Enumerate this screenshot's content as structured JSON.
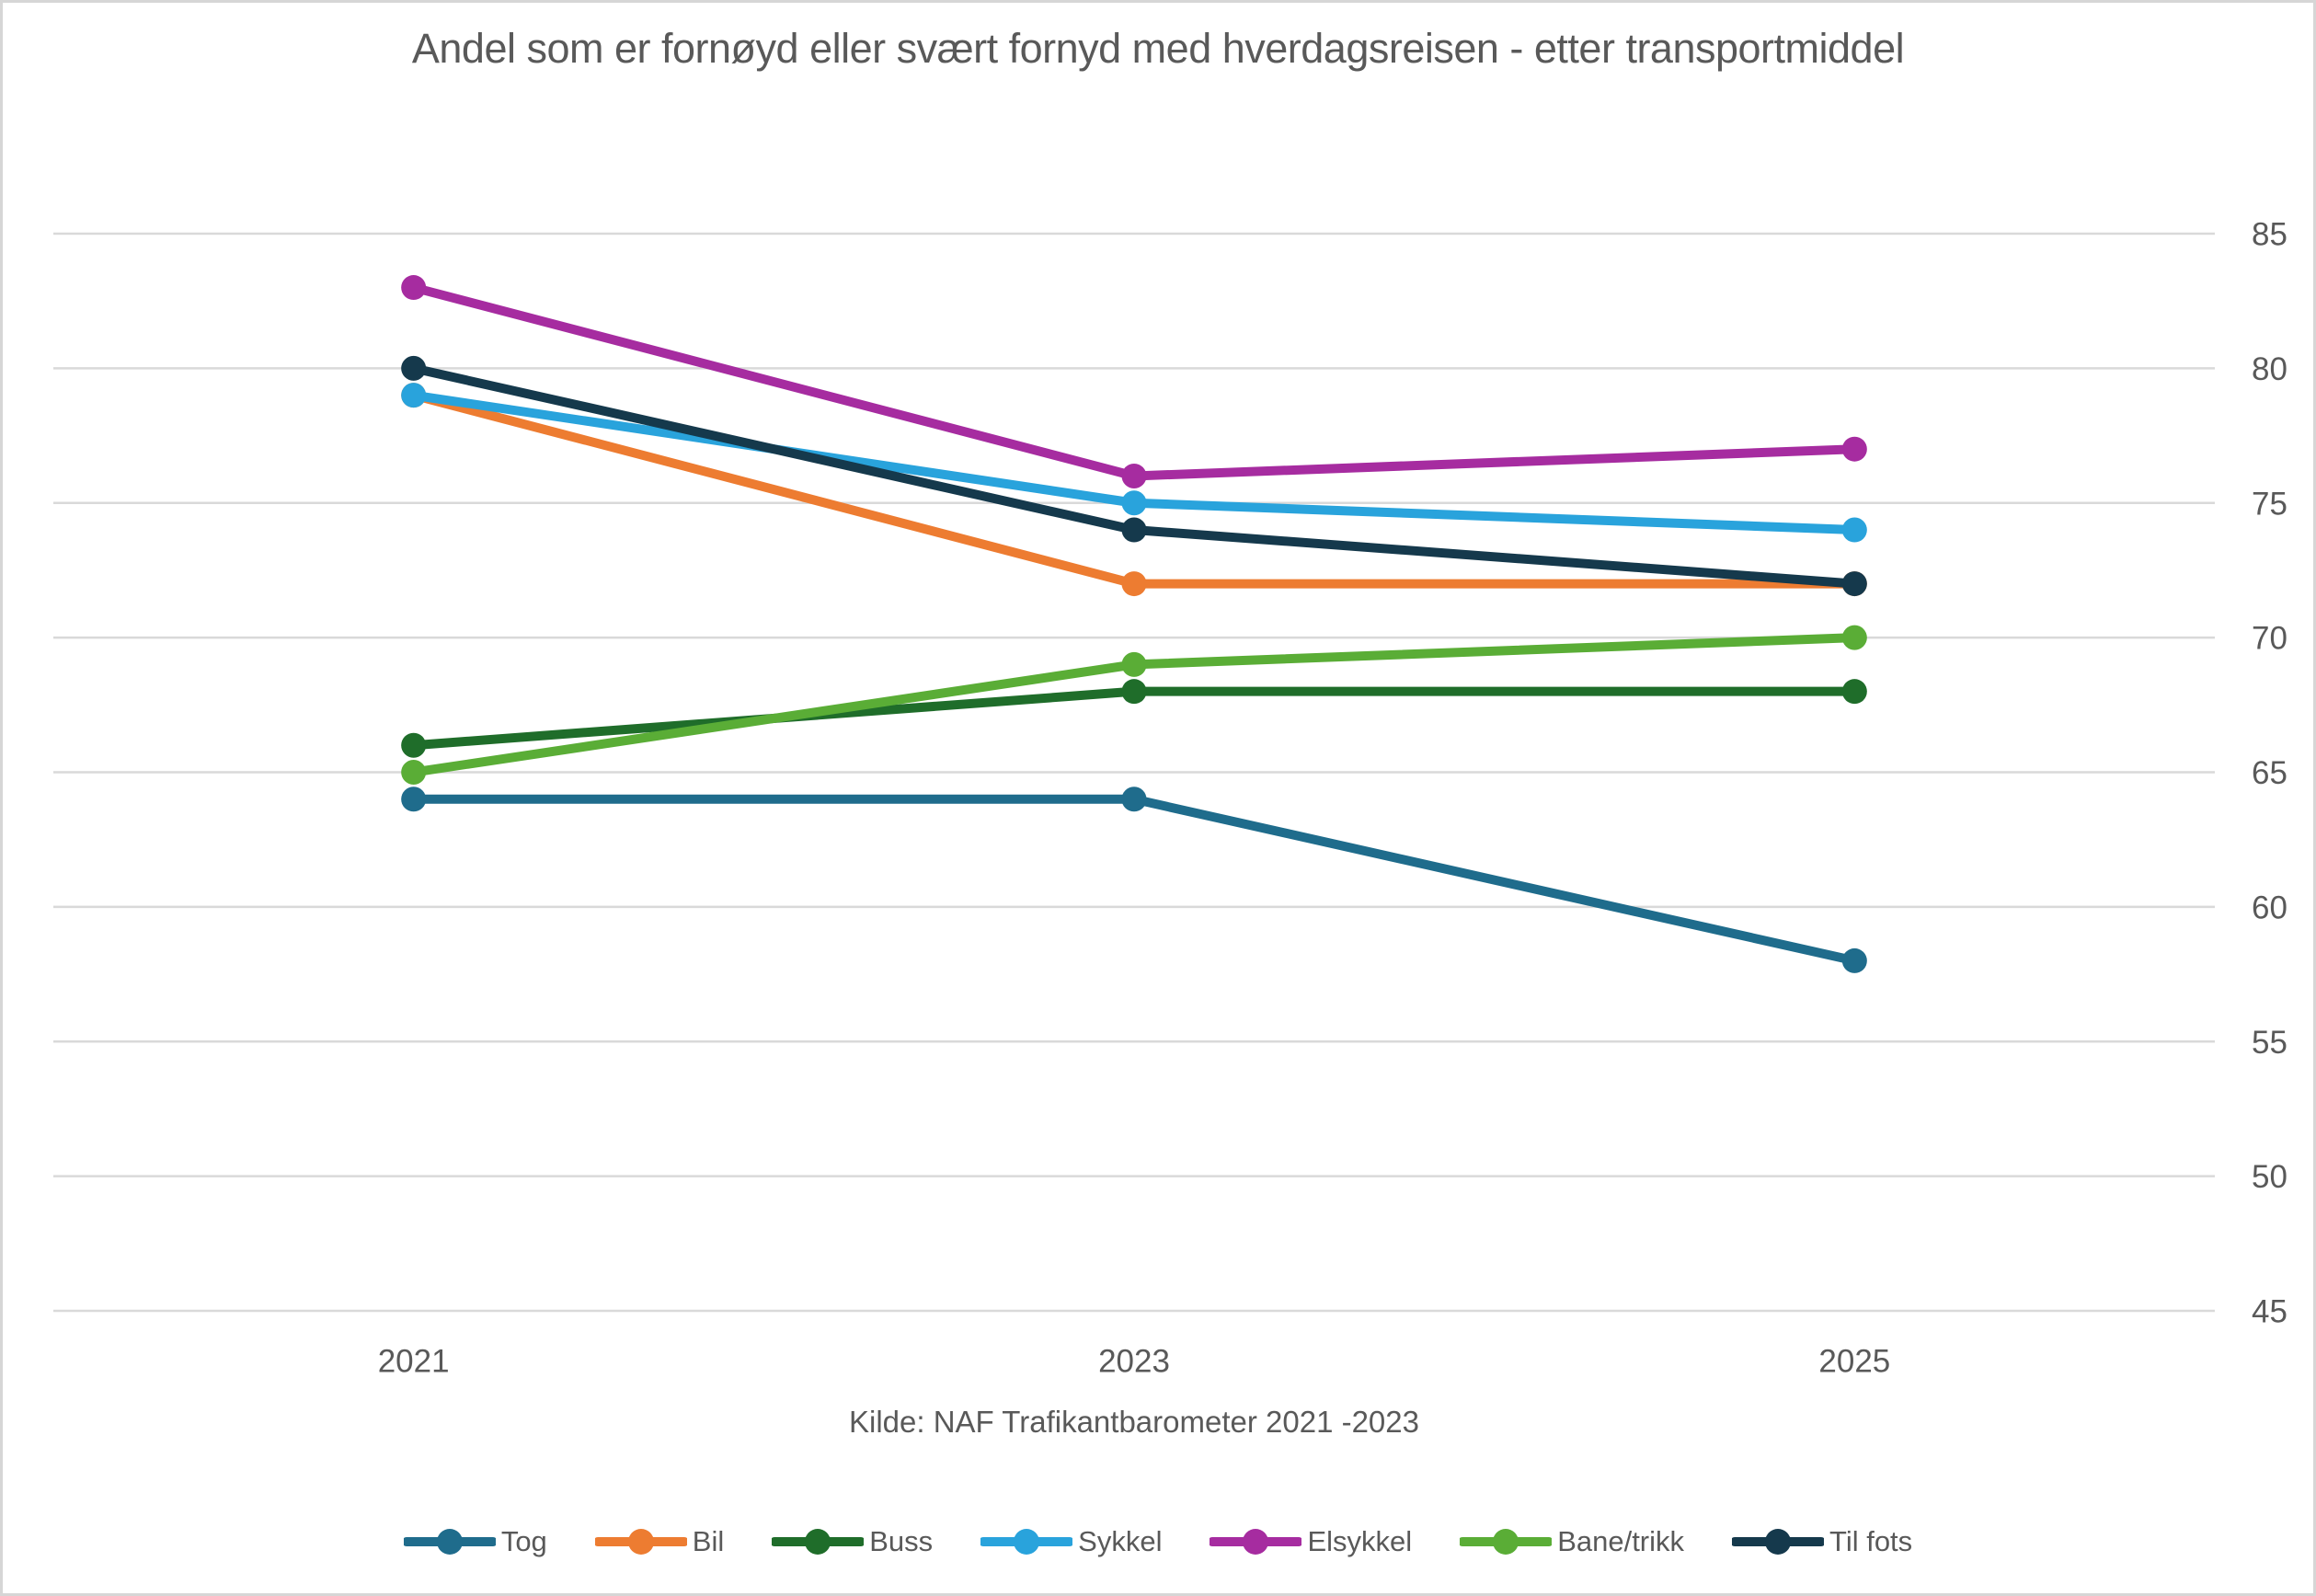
{
  "chart_data": {
    "type": "line",
    "title": "Andel som er fornøyd eller svært fornyd med hverdagsreisen - etter transportmiddel",
    "source": "Kilde: NAF Trafikantbarometer 2021 -2023",
    "categories": [
      "2021",
      "2023",
      "2025"
    ],
    "series": [
      {
        "name": "Tog",
        "color": "#1F6C8C",
        "values": [
          64,
          64,
          58
        ]
      },
      {
        "name": "Bil",
        "color": "#ED7C31",
        "values": [
          79,
          72,
          72
        ]
      },
      {
        "name": "Buss",
        "color": "#1F6D2A",
        "values": [
          66,
          68,
          68
        ]
      },
      {
        "name": "Sykkel",
        "color": "#29A3DC",
        "values": [
          79,
          75,
          74
        ]
      },
      {
        "name": "Elsykkel",
        "color": "#A62CA0",
        "values": [
          83,
          76,
          77
        ]
      },
      {
        "name": "Bane/trikk",
        "color": "#5AAD36",
        "values": [
          65,
          69,
          70
        ]
      },
      {
        "name": "Til fots",
        "color": "#15394C",
        "values": [
          80,
          74,
          72
        ]
      }
    ],
    "y_axis": {
      "min": 45,
      "max": 85,
      "step": 5,
      "ticks": [
        85,
        80,
        75,
        70,
        65,
        60,
        55,
        50,
        45
      ],
      "side": "right"
    },
    "xlabel": "",
    "ylabel": "",
    "grid": true,
    "legend_position": "bottom",
    "colors": {
      "axis_text": "#595959",
      "gridline": "#D9D9D9"
    }
  }
}
